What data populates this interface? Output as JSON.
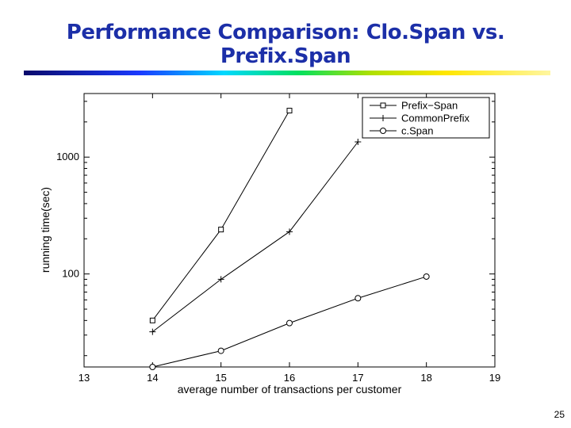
{
  "slide": {
    "title": "Performance Comparison: Clo.Span vs. Prefix.Span",
    "number": "25",
    "title_bar_colors": [
      "#0a0a6a",
      "#1a3aff",
      "#00d8ff",
      "#00e060",
      "#b0e000",
      "#ffe600",
      "#fff6a0"
    ]
  },
  "chart_data": {
    "type": "line",
    "title": "",
    "xlabel": "average number of transactions per customer",
    "ylabel": "running time(sec)",
    "xlim": [
      13,
      19
    ],
    "ylim": [
      16,
      3500
    ],
    "yscale": "log",
    "grid": false,
    "legend_position": "top-right",
    "x_ticks": [
      13,
      14,
      15,
      16,
      17,
      18,
      19
    ],
    "y_ticks": [
      100,
      1000
    ],
    "series": [
      {
        "name": "Prefix−Span",
        "marker": "square",
        "x": [
          14,
          15,
          16
        ],
        "values": [
          40,
          240,
          2500
        ]
      },
      {
        "name": "CommonPrefix",
        "marker": "plus",
        "x": [
          14,
          15,
          16,
          17
        ],
        "values": [
          32,
          90,
          230,
          1350
        ]
      },
      {
        "name": "c.Span",
        "marker": "circle",
        "x": [
          14,
          15,
          16,
          17,
          18
        ],
        "values": [
          16,
          22,
          38,
          62,
          95
        ]
      }
    ]
  }
}
